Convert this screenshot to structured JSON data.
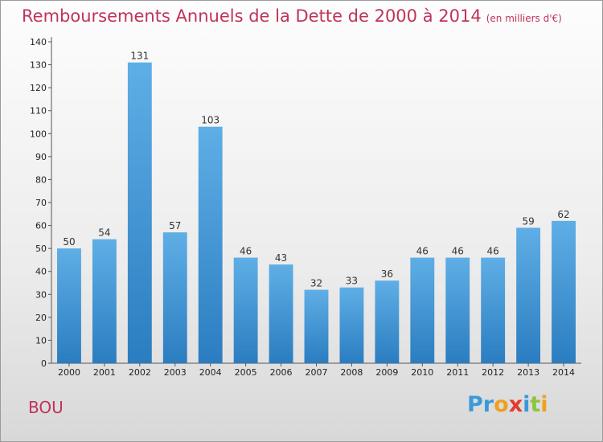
{
  "chart_data": {
    "type": "bar",
    "title": "Remboursements Annuels de la Dette de 2000 à 2014",
    "subtitle": "(en milliers d'€)",
    "xlabel": "",
    "ylabel": "",
    "categories": [
      "2000",
      "2001",
      "2002",
      "2003",
      "2004",
      "2005",
      "2006",
      "2007",
      "2008",
      "2009",
      "2010",
      "2011",
      "2012",
      "2013",
      "2014"
    ],
    "values": [
      50,
      54,
      131,
      57,
      103,
      46,
      43,
      32,
      33,
      36,
      46,
      46,
      46,
      59,
      62
    ],
    "ylim": [
      0,
      140
    ],
    "yticks": [
      0,
      10,
      20,
      30,
      40,
      50,
      60,
      70,
      80,
      90,
      100,
      110,
      120,
      130,
      140
    ],
    "grid": false,
    "colors": {
      "bar_light": "#5faee6",
      "bar_dark": "#2a7dc0",
      "title": "#c0335a"
    }
  },
  "location": "BOU",
  "brand": {
    "letters": [
      "P",
      "r",
      "o",
      "x",
      "i",
      "t",
      "i"
    ],
    "colors": [
      "#3a9ad9",
      "#3a9ad9",
      "#f0a020",
      "#e23b2e",
      "#3a9ad9",
      "#8cc63f",
      "#f0a020"
    ]
  }
}
